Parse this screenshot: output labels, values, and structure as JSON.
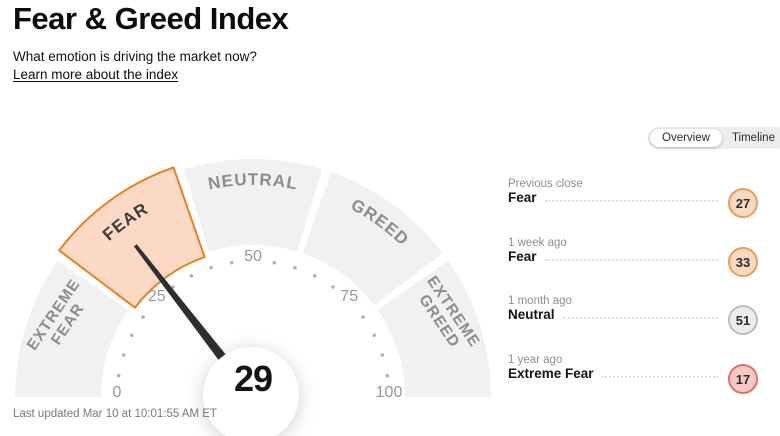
{
  "header": {
    "title": "Fear & Greed Index",
    "subtitle": "What emotion is driving the market now?",
    "link": "Learn more about the index"
  },
  "tabs": {
    "overview": "Overview",
    "timeline": "Timeline"
  },
  "gauge": {
    "value": 29,
    "value_label": "29",
    "min": 0,
    "max": 100,
    "tick_numbers": [
      0,
      25,
      50,
      75,
      100
    ],
    "segments": [
      {
        "label": "EXTREME FEAR",
        "lines": [
          "EXTREME",
          "FEAR"
        ],
        "from": 0,
        "to": 20,
        "selected": false
      },
      {
        "label": "FEAR",
        "from": 20,
        "to": 40,
        "selected": true
      },
      {
        "label": "NEUTRAL",
        "from": 40,
        "to": 60,
        "selected": false
      },
      {
        "label": "GREED",
        "from": 60,
        "to": 80,
        "selected": false
      },
      {
        "label": "EXTREME GREED",
        "lines": [
          "EXTREME",
          "GREED"
        ],
        "from": 80,
        "to": 100,
        "selected": false
      }
    ],
    "colors": {
      "segment": "#f1f1f1",
      "selected_fill": "#fbd9c5",
      "selected_stroke": "#e8811f",
      "needle": "#2f2f31",
      "label": "#8d8d90",
      "selected_label": "#3b3b3d",
      "number": "#97979a",
      "dot": "#b3b3b5",
      "value_text": "#141414"
    }
  },
  "history": [
    {
      "period": "Previous close",
      "label": "Fear",
      "value": "27",
      "tone": "fear"
    },
    {
      "period": "1 week ago",
      "label": "Fear",
      "value": "33",
      "tone": "fear"
    },
    {
      "period": "1 month ago",
      "label": "Neutral",
      "value": "51",
      "tone": "neutral"
    },
    {
      "period": "1 year ago",
      "label": "Extreme Fear",
      "value": "17",
      "tone": "extreme-fear"
    }
  ],
  "footer": {
    "last_updated": "Last updated Mar 10 at 10:01:55 AM ET"
  },
  "chart_data": {
    "type": "gauge",
    "title": "Fear & Greed Index",
    "value": 29,
    "range": [
      0,
      100
    ],
    "tick_labels": [
      0,
      25,
      50,
      75,
      100
    ],
    "current_label": "Fear",
    "segments": [
      {
        "name": "Extreme Fear",
        "range": [
          0,
          20
        ]
      },
      {
        "name": "Fear",
        "range": [
          20,
          40
        ],
        "highlighted": true
      },
      {
        "name": "Neutral",
        "range": [
          40,
          60
        ]
      },
      {
        "name": "Greed",
        "range": [
          60,
          80
        ]
      },
      {
        "name": "Extreme Greed",
        "range": [
          80,
          100
        ]
      }
    ],
    "history": [
      {
        "period": "Previous close",
        "label": "Fear",
        "value": 27
      },
      {
        "period": "1 week ago",
        "label": "Fear",
        "value": 33
      },
      {
        "period": "1 month ago",
        "label": "Neutral",
        "value": 51
      },
      {
        "period": "1 year ago",
        "label": "Extreme Fear",
        "value": 17
      }
    ]
  }
}
